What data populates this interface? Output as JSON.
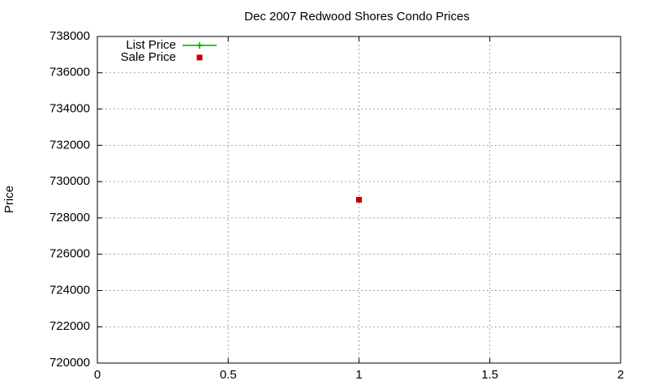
{
  "chart_data": {
    "type": "scatter",
    "title": "Dec 2007 Redwood Shores Condo Prices",
    "y_label": "Price",
    "x": [
      1
    ],
    "series": [
      {
        "name": "List Price",
        "color": "#00a000",
        "style": "linespoints",
        "values": [
          null
        ]
      },
      {
        "name": "Sale Price",
        "color": "#c00000",
        "style": "points",
        "values": [
          729000
        ]
      }
    ],
    "xlim": [
      0,
      2
    ],
    "xticks": [
      0,
      0.5,
      1,
      1.5,
      2
    ],
    "ylim": [
      720000,
      738000
    ],
    "yticks": [
      720000,
      722000,
      724000,
      726000,
      728000,
      730000,
      732000,
      734000,
      736000,
      738000
    ],
    "grid": true,
    "legend": "top-left"
  }
}
